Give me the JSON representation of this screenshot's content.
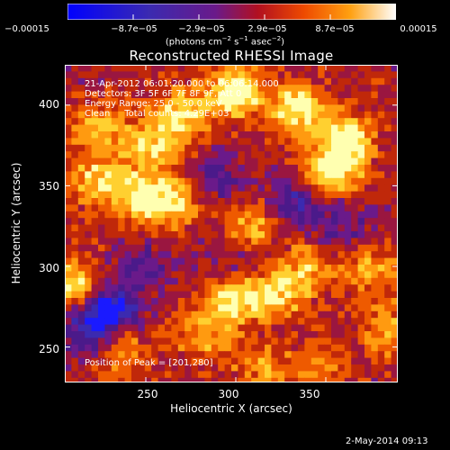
{
  "colorbar": {
    "ticks": [
      "−0.00015",
      "−8.7e−05",
      "−2.9e−05",
      "2.9e−05",
      "8.7e−05",
      "0.00015"
    ],
    "units_parts": [
      "(photons cm",
      "−2",
      " s",
      "−1",
      " asec",
      "−2",
      ")"
    ]
  },
  "title": "Reconstructed RHESSI Image",
  "info": {
    "line1": "21-Apr-2012 06:01:20.000 to 06:06:14.000",
    "line2": "Detectors: 3F 5F 6F 7F 8F 9F, Att 0",
    "line3": "Energy Range: 25.0 - 50.0 keV",
    "line4": "Clean     Total counts: 4.29E+03",
    "peak": "Position of Peak = [201,280]"
  },
  "chart_data": {
    "type": "heatmap",
    "title": "Reconstructed RHESSI Image",
    "xlabel": "Heliocentric X (arcsec)",
    "ylabel": "Heliocentric Y (arcsec)",
    "xlim": [
      205,
      390
    ],
    "ylim": [
      228,
      425
    ],
    "x_ticks": [
      250,
      300,
      350
    ],
    "y_ticks": [
      250,
      300,
      350,
      400
    ],
    "x_tick_labels": [
      "250",
      "300",
      "350"
    ],
    "y_tick_labels": [
      "250",
      "300",
      "350",
      "400"
    ],
    "colorscale": [
      "#1a1aff",
      "#3b2ab0",
      "#4b1a8a",
      "#6a1a8a",
      "#9a1640",
      "#c0280a",
      "#ee5a00",
      "#ff9a10",
      "#ffd030",
      "#ffffb0"
    ],
    "clim": [
      -0.00015,
      0.00015
    ],
    "grid": false,
    "peak_position": [
      201,
      280
    ],
    "sources": [
      {
        "x": 300,
        "y": 408,
        "amplitude": 1.0
      },
      {
        "x": 270,
        "y": 395,
        "amplitude": 0.8
      },
      {
        "x": 335,
        "y": 398,
        "amplitude": 0.9
      },
      {
        "x": 360,
        "y": 380,
        "amplitude": 0.85
      },
      {
        "x": 355,
        "y": 360,
        "amplitude": 0.9
      },
      {
        "x": 225,
        "y": 385,
        "amplitude": 0.6
      },
      {
        "x": 255,
        "y": 375,
        "amplitude": 0.7
      },
      {
        "x": 245,
        "y": 345,
        "amplitude": 0.8
      },
      {
        "x": 265,
        "y": 340,
        "amplitude": 0.75
      },
      {
        "x": 222,
        "y": 353,
        "amplitude": 0.7
      },
      {
        "x": 210,
        "y": 288,
        "amplitude": 0.85
      },
      {
        "x": 310,
        "y": 325,
        "amplitude": 0.65
      },
      {
        "x": 300,
        "y": 280,
        "amplitude": 0.85
      },
      {
        "x": 325,
        "y": 283,
        "amplitude": 0.7
      },
      {
        "x": 340,
        "y": 300,
        "amplitude": 0.5
      },
      {
        "x": 375,
        "y": 298,
        "amplitude": 0.55
      },
      {
        "x": 385,
        "y": 260,
        "amplitude": 0.6
      },
      {
        "x": 283,
        "y": 258,
        "amplitude": 0.55
      },
      {
        "x": 235,
        "y": 248,
        "amplitude": 0.5
      },
      {
        "x": 315,
        "y": 237,
        "amplitude": 0.45
      },
      {
        "x": 345,
        "y": 238,
        "amplitude": 0.4
      },
      {
        "x": 230,
        "y": 275,
        "amplitude": -0.9
      },
      {
        "x": 218,
        "y": 260,
        "amplitude": -0.7
      },
      {
        "x": 332,
        "y": 337,
        "amplitude": -0.6
      },
      {
        "x": 290,
        "y": 355,
        "amplitude": -0.45
      },
      {
        "x": 300,
        "y": 305,
        "amplitude": -0.35
      },
      {
        "x": 360,
        "y": 325,
        "amplitude": -0.4
      },
      {
        "x": 250,
        "y": 300,
        "amplitude": -0.4
      }
    ]
  },
  "date_stamp": "2-May-2014 09:13"
}
